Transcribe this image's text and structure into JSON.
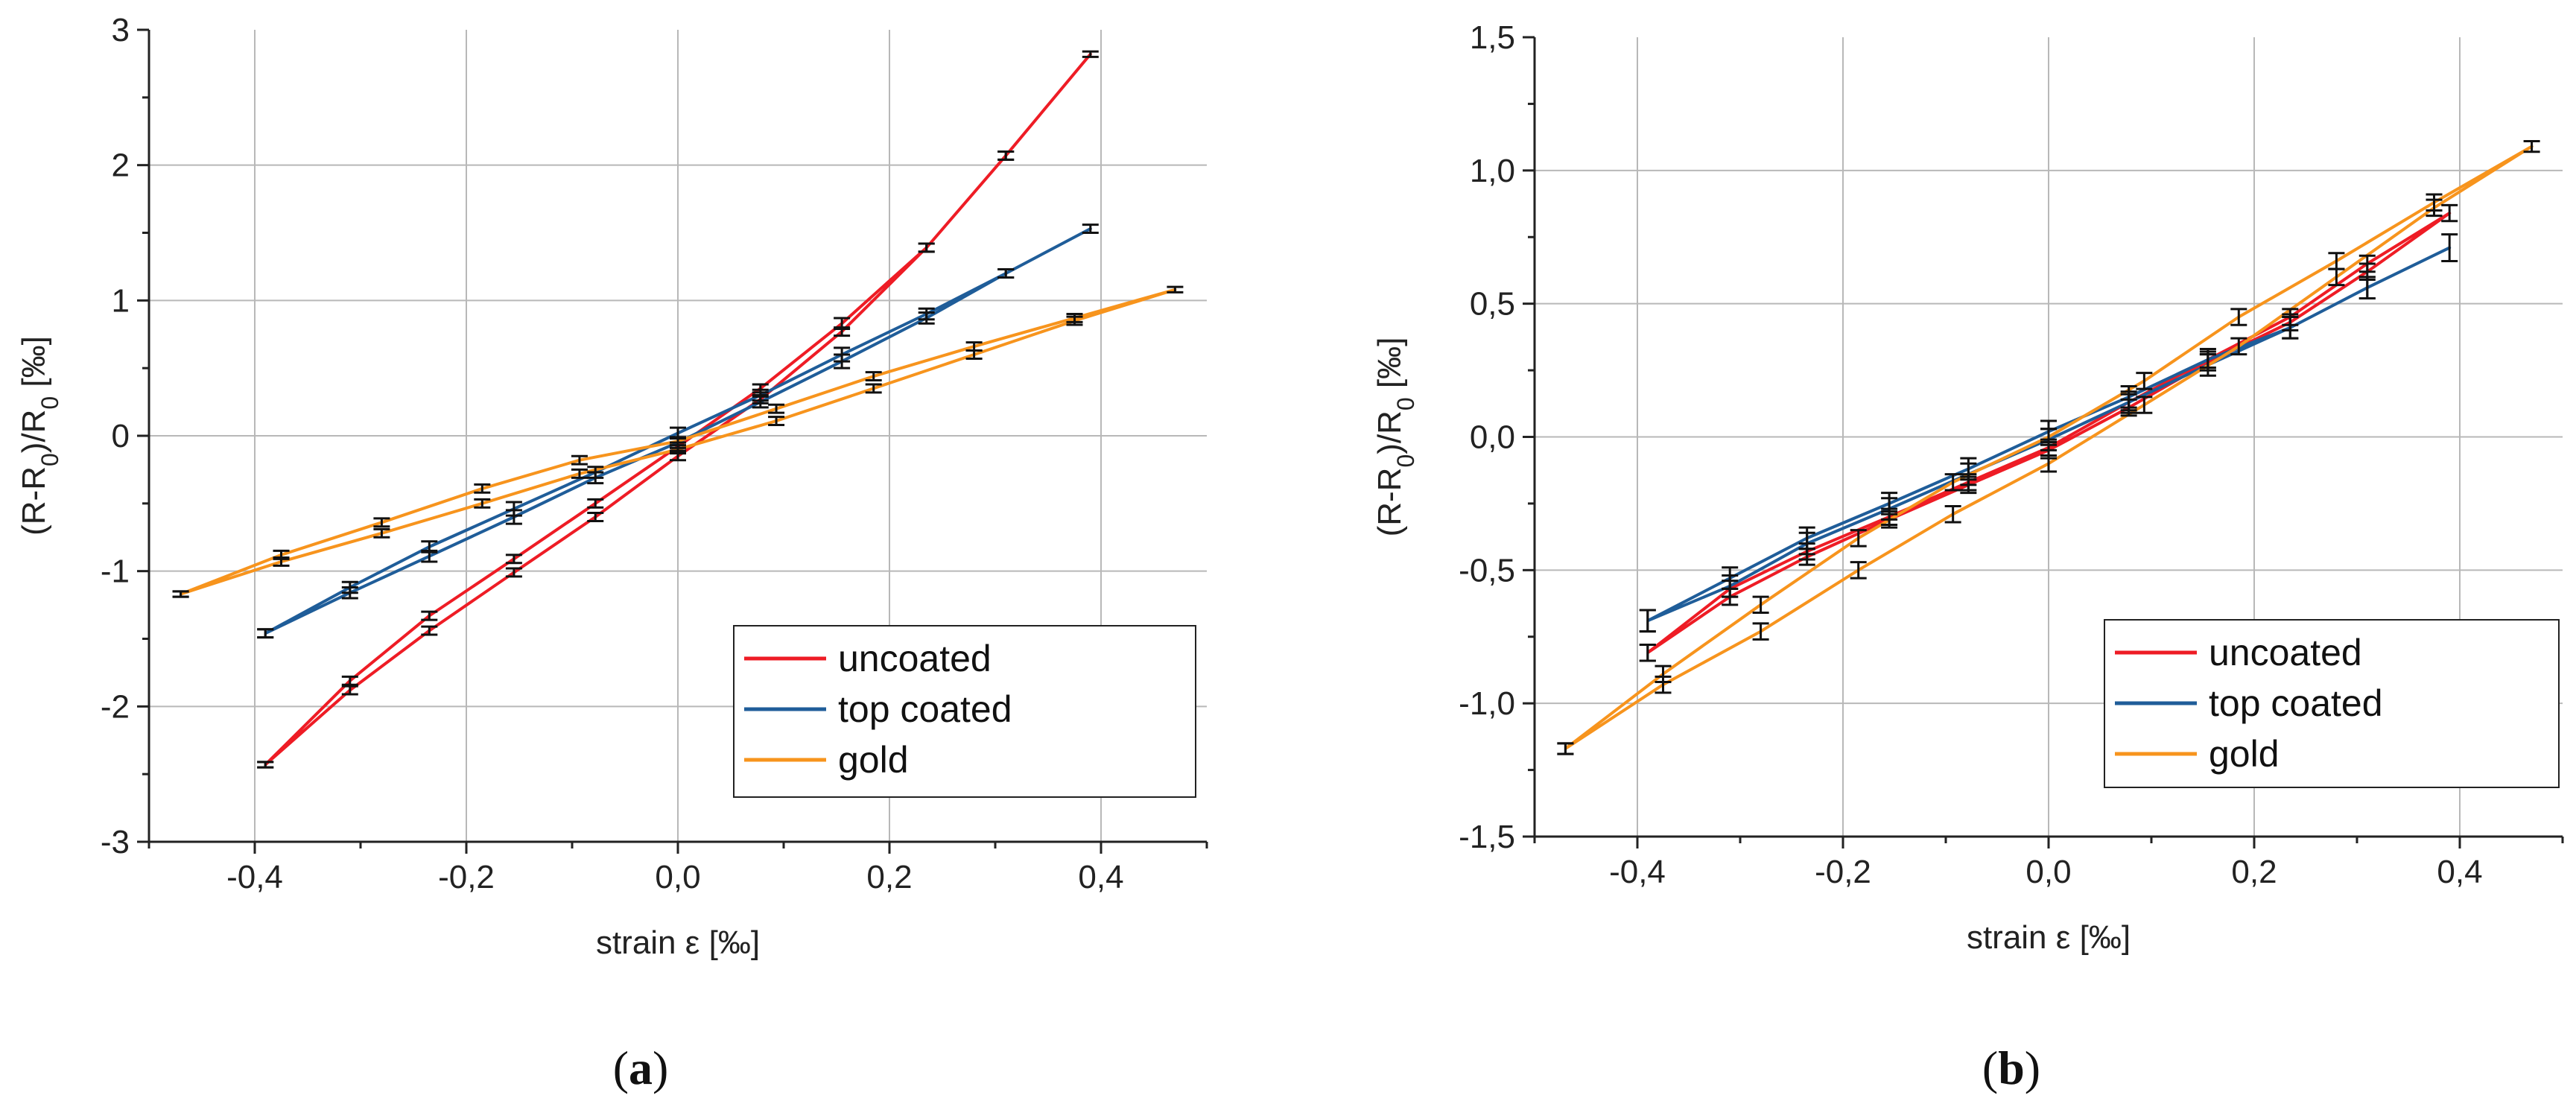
{
  "chart_data": [
    {
      "type": "line",
      "panel_label": "(a)",
      "xlabel": "strain ε [‰]",
      "ylabel_parts": [
        "(R-R",
        "0",
        ")/R",
        "0",
        " [‰]"
      ],
      "xlim": [
        -0.5,
        0.5
      ],
      "ylim": [
        -3,
        3
      ],
      "xticks": [
        -0.4,
        -0.2,
        0.0,
        0.2,
        0.4
      ],
      "xtick_labels": [
        "-0,4",
        "-0,2",
        "0,0",
        "0,2",
        "0,4"
      ],
      "yticks": [
        -3,
        -2,
        -1,
        0,
        1,
        2,
        3
      ],
      "ytick_labels": [
        "-3",
        "-2",
        "-1",
        "0",
        "1",
        "2",
        "3"
      ],
      "grid": true,
      "legend_position": "bottom-right",
      "series": [
        {
          "name": "uncoated",
          "color": "#ee1c25",
          "x": [
            -0.39,
            -0.31,
            -0.235,
            -0.155,
            -0.078,
            0.0,
            0.078,
            0.155,
            0.235,
            0.31,
            0.39,
            0.31,
            0.235,
            0.155,
            0.078,
            0.0,
            -0.078,
            -0.155,
            -0.235,
            -0.31,
            -0.39
          ],
          "y": [
            -2.43,
            -1.88,
            -1.44,
            -1.01,
            -0.6,
            -0.15,
            0.27,
            0.77,
            1.39,
            2.07,
            2.82,
            2.07,
            1.39,
            0.83,
            0.35,
            -0.08,
            -0.5,
            -0.91,
            -1.33,
            -1.81,
            -2.43
          ],
          "err": [
            0.02,
            0.03,
            0.03,
            0.03,
            0.03,
            0.03,
            0.03,
            0.03,
            0.03,
            0.03,
            0.02,
            0.03,
            0.03,
            0.04,
            0.03,
            0.03,
            0.03,
            0.03,
            0.03,
            0.03,
            0.02
          ]
        },
        {
          "name": "top coated",
          "color": "#1f5d99",
          "x": [
            -0.39,
            -0.31,
            -0.235,
            -0.155,
            -0.078,
            0.0,
            0.078,
            0.155,
            0.235,
            0.31,
            0.39,
            0.31,
            0.235,
            0.155,
            0.078,
            0.0,
            -0.078,
            -0.155,
            -0.235,
            -0.31,
            -0.39
          ],
          "y": [
            -1.46,
            -1.16,
            -0.89,
            -0.6,
            -0.31,
            -0.05,
            0.25,
            0.55,
            0.87,
            1.2,
            1.53,
            1.2,
            0.9,
            0.6,
            0.3,
            0.02,
            -0.27,
            -0.54,
            -0.82,
            -1.12,
            -1.46
          ],
          "err": [
            0.03,
            0.04,
            0.04,
            0.05,
            0.04,
            0.04,
            0.04,
            0.05,
            0.04,
            0.03,
            0.03,
            0.03,
            0.04,
            0.05,
            0.04,
            0.04,
            0.04,
            0.05,
            0.04,
            0.04,
            0.03
          ]
        },
        {
          "name": "gold",
          "color": "#f7941d",
          "x": [
            -0.47,
            -0.375,
            -0.28,
            -0.185,
            -0.093,
            0.0,
            0.093,
            0.185,
            0.28,
            0.375,
            0.47,
            0.375,
            0.28,
            0.185,
            0.093,
            0.0,
            -0.093,
            -0.185,
            -0.28,
            -0.375,
            -0.47
          ],
          "y": [
            -1.17,
            -0.93,
            -0.72,
            -0.5,
            -0.28,
            -0.1,
            0.11,
            0.35,
            0.6,
            0.85,
            1.08,
            0.87,
            0.66,
            0.44,
            0.2,
            -0.04,
            -0.18,
            -0.39,
            -0.64,
            -0.88,
            -1.17
          ],
          "err": [
            0.02,
            0.03,
            0.03,
            0.03,
            0.03,
            0.03,
            0.03,
            0.03,
            0.03,
            0.03,
            0.02,
            0.03,
            0.03,
            0.03,
            0.03,
            0.03,
            0.03,
            0.03,
            0.03,
            0.03,
            0.02
          ]
        }
      ]
    },
    {
      "type": "line",
      "panel_label": "(b)",
      "xlabel": "strain ε [‰]",
      "ylabel_parts": [
        "(R-R",
        "0",
        ")/R",
        "0",
        " [‰]"
      ],
      "xlim": [
        -0.5,
        0.5
      ],
      "ylim": [
        -1.5,
        1.5
      ],
      "xticks": [
        -0.4,
        -0.2,
        0.0,
        0.2,
        0.4
      ],
      "xtick_labels": [
        "-0,4",
        "-0,2",
        "0,0",
        "0,2",
        "0,4"
      ],
      "yticks": [
        -1.5,
        -1.0,
        -0.5,
        0.0,
        0.5,
        1.0,
        1.5
      ],
      "ytick_labels": [
        "-1,5",
        "-1,0",
        "-0,5",
        "0,0",
        "0,5",
        "1,0",
        "1,5"
      ],
      "grid": true,
      "legend_position": "bottom-right",
      "series": [
        {
          "name": "uncoated",
          "color": "#ee1c25",
          "x": [
            -0.39,
            -0.31,
            -0.235,
            -0.155,
            -0.078,
            0.0,
            0.078,
            0.155,
            0.235,
            0.31,
            0.39,
            0.31,
            0.235,
            0.155,
            0.078,
            0.0,
            -0.078,
            -0.155,
            -0.235,
            -0.31,
            -0.39
          ],
          "y": [
            -0.81,
            -0.6,
            -0.45,
            -0.31,
            -0.18,
            -0.05,
            0.11,
            0.28,
            0.43,
            0.62,
            0.84,
            0.65,
            0.45,
            0.29,
            0.13,
            -0.04,
            -0.17,
            -0.3,
            -0.43,
            -0.57,
            -0.81
          ],
          "err": [
            0.03,
            0.03,
            0.03,
            0.03,
            0.03,
            0.03,
            0.03,
            0.03,
            0.03,
            0.03,
            0.03,
            0.03,
            0.03,
            0.03,
            0.03,
            0.03,
            0.03,
            0.03,
            0.03,
            0.03,
            0.03
          ]
        },
        {
          "name": "top coated",
          "color": "#1f5d99",
          "x": [
            -0.39,
            -0.31,
            -0.235,
            -0.155,
            -0.078,
            0.0,
            0.078,
            0.155,
            0.235,
            0.31,
            0.39,
            0.31,
            0.235,
            0.155,
            0.078,
            0.0,
            -0.078,
            -0.155,
            -0.235,
            -0.31,
            -0.39
          ],
          "y": [
            -0.69,
            -0.53,
            -0.38,
            -0.25,
            -0.12,
            0.02,
            0.15,
            0.29,
            0.41,
            0.56,
            0.71,
            0.56,
            0.41,
            0.27,
            0.13,
            -0.01,
            -0.14,
            -0.27,
            -0.4,
            -0.56,
            -0.69
          ],
          "err": [
            0.04,
            0.04,
            0.04,
            0.04,
            0.04,
            0.04,
            0.04,
            0.04,
            0.04,
            0.04,
            0.05,
            0.04,
            0.04,
            0.04,
            0.04,
            0.04,
            0.04,
            0.04,
            0.04,
            0.04,
            0.04
          ]
        },
        {
          "name": "gold",
          "color": "#f7941d",
          "x": [
            -0.47,
            -0.375,
            -0.28,
            -0.185,
            -0.093,
            0.0,
            0.093,
            0.185,
            0.28,
            0.375,
            0.47,
            0.375,
            0.28,
            0.185,
            0.093,
            0.0,
            -0.093,
            -0.185,
            -0.28,
            -0.375,
            -0.47
          ],
          "y": [
            -1.17,
            -0.93,
            -0.73,
            -0.5,
            -0.29,
            -0.1,
            0.12,
            0.34,
            0.6,
            0.86,
            1.09,
            0.88,
            0.66,
            0.45,
            0.21,
            0.0,
            -0.17,
            -0.38,
            -0.63,
            -0.89,
            -1.17
          ],
          "err": [
            0.02,
            0.03,
            0.03,
            0.03,
            0.03,
            0.03,
            0.03,
            0.03,
            0.03,
            0.03,
            0.02,
            0.03,
            0.03,
            0.03,
            0.03,
            0.03,
            0.03,
            0.03,
            0.03,
            0.03,
            0.02
          ]
        }
      ]
    }
  ]
}
